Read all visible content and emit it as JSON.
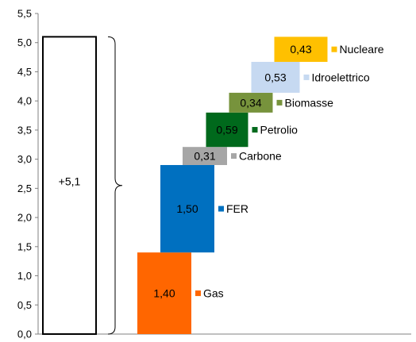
{
  "chart_data": {
    "type": "bar",
    "subtype": "waterfall",
    "ylim": [
      0,
      5.5
    ],
    "y_ticks": [
      "0,0",
      "0,5",
      "1,0",
      "1,5",
      "2,0",
      "2,5",
      "3,0",
      "3,5",
      "4,0",
      "4,5",
      "5,0",
      "5,5"
    ],
    "grid": false,
    "series": [
      {
        "name": "Gas",
        "value": 1.4,
        "label": "1,40",
        "color": "#ff6600"
      },
      {
        "name": "FER",
        "value": 1.5,
        "label": "1,50",
        "color": "#0070c0"
      },
      {
        "name": "Carbone",
        "value": 0.31,
        "label": "0,31",
        "color": "#a6a6a6"
      },
      {
        "name": "Petrolio",
        "value": 0.59,
        "label": "0,59",
        "color": "#00691c"
      },
      {
        "name": "Biomasse",
        "value": 0.34,
        "label": "0,34",
        "color": "#77933c"
      },
      {
        "name": "Idroelettrico",
        "value": 0.53,
        "label": "0,53",
        "color": "#c6d9f1"
      },
      {
        "name": "Nucleare",
        "value": 0.43,
        "label": "0,43",
        "color": "#ffc000"
      }
    ],
    "total": {
      "value": 5.1,
      "label": "+5,1"
    }
  }
}
